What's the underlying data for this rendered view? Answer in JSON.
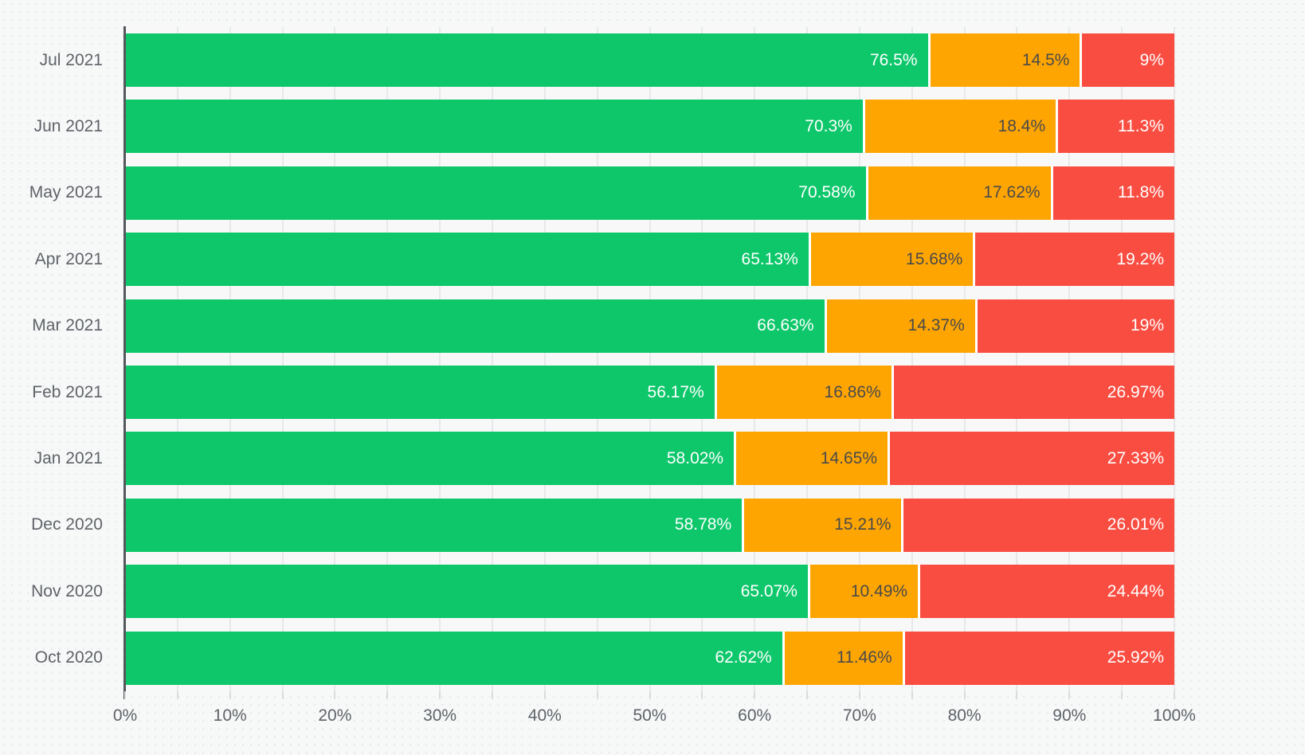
{
  "chart_data": {
    "type": "bar",
    "orientation": "horizontal",
    "stacked": true,
    "title": "",
    "xlabel": "",
    "ylabel": "",
    "legend": "none",
    "categories": [
      "Jul 2021",
      "Jun 2021",
      "May 2021",
      "Apr 2021",
      "Mar 2021",
      "Feb 2021",
      "Jan 2021",
      "Dec 2020",
      "Nov 2020",
      "Oct 2020"
    ],
    "series": [
      {
        "name": "green",
        "color": "#0EC76B",
        "label_color": "#FFFFFF",
        "values": [
          76.5,
          70.3,
          70.58,
          65.13,
          66.63,
          56.17,
          58.02,
          58.78,
          65.07,
          62.62
        ],
        "labels": [
          "76.5%",
          "70.3%",
          "70.58%",
          "65.13%",
          "66.63%",
          "56.17%",
          "58.02%",
          "58.78%",
          "65.07%",
          "62.62%"
        ]
      },
      {
        "name": "orange",
        "color": "#FEA502",
        "label_color": "#4A4A4A",
        "values": [
          14.5,
          18.4,
          17.62,
          15.68,
          14.37,
          16.86,
          14.65,
          15.21,
          10.49,
          11.46
        ],
        "labels": [
          "14.5%",
          "18.4%",
          "17.62%",
          "15.68%",
          "14.37%",
          "16.86%",
          "14.65%",
          "15.21%",
          "10.49%",
          "11.46%"
        ]
      },
      {
        "name": "red",
        "color": "#FA4D41",
        "label_color": "#FFFFFF",
        "values": [
          9,
          11.3,
          11.8,
          19.2,
          19,
          26.97,
          27.33,
          26.01,
          24.44,
          25.92
        ],
        "labels": [
          "9%",
          "11.3%",
          "11.8%",
          "19.2%",
          "19%",
          "26.97%",
          "27.33%",
          "26.01%",
          "24.44%",
          "25.92%"
        ]
      }
    ],
    "x_axis": {
      "min": 0,
      "max": 100,
      "tick_labels": [
        "0%",
        "10%",
        "20%",
        "30%",
        "40%",
        "50%",
        "60%",
        "70%",
        "80%",
        "90%",
        "100%"
      ],
      "gridline_step_pct": 5,
      "label_step_pct": 10
    },
    "colors": {
      "background": "#F7F8F8",
      "gridline": "#E7E8E9",
      "axis_line": "#54585C",
      "axis_text": "#5F6368",
      "segment_separator": "#FFFFFF"
    }
  }
}
